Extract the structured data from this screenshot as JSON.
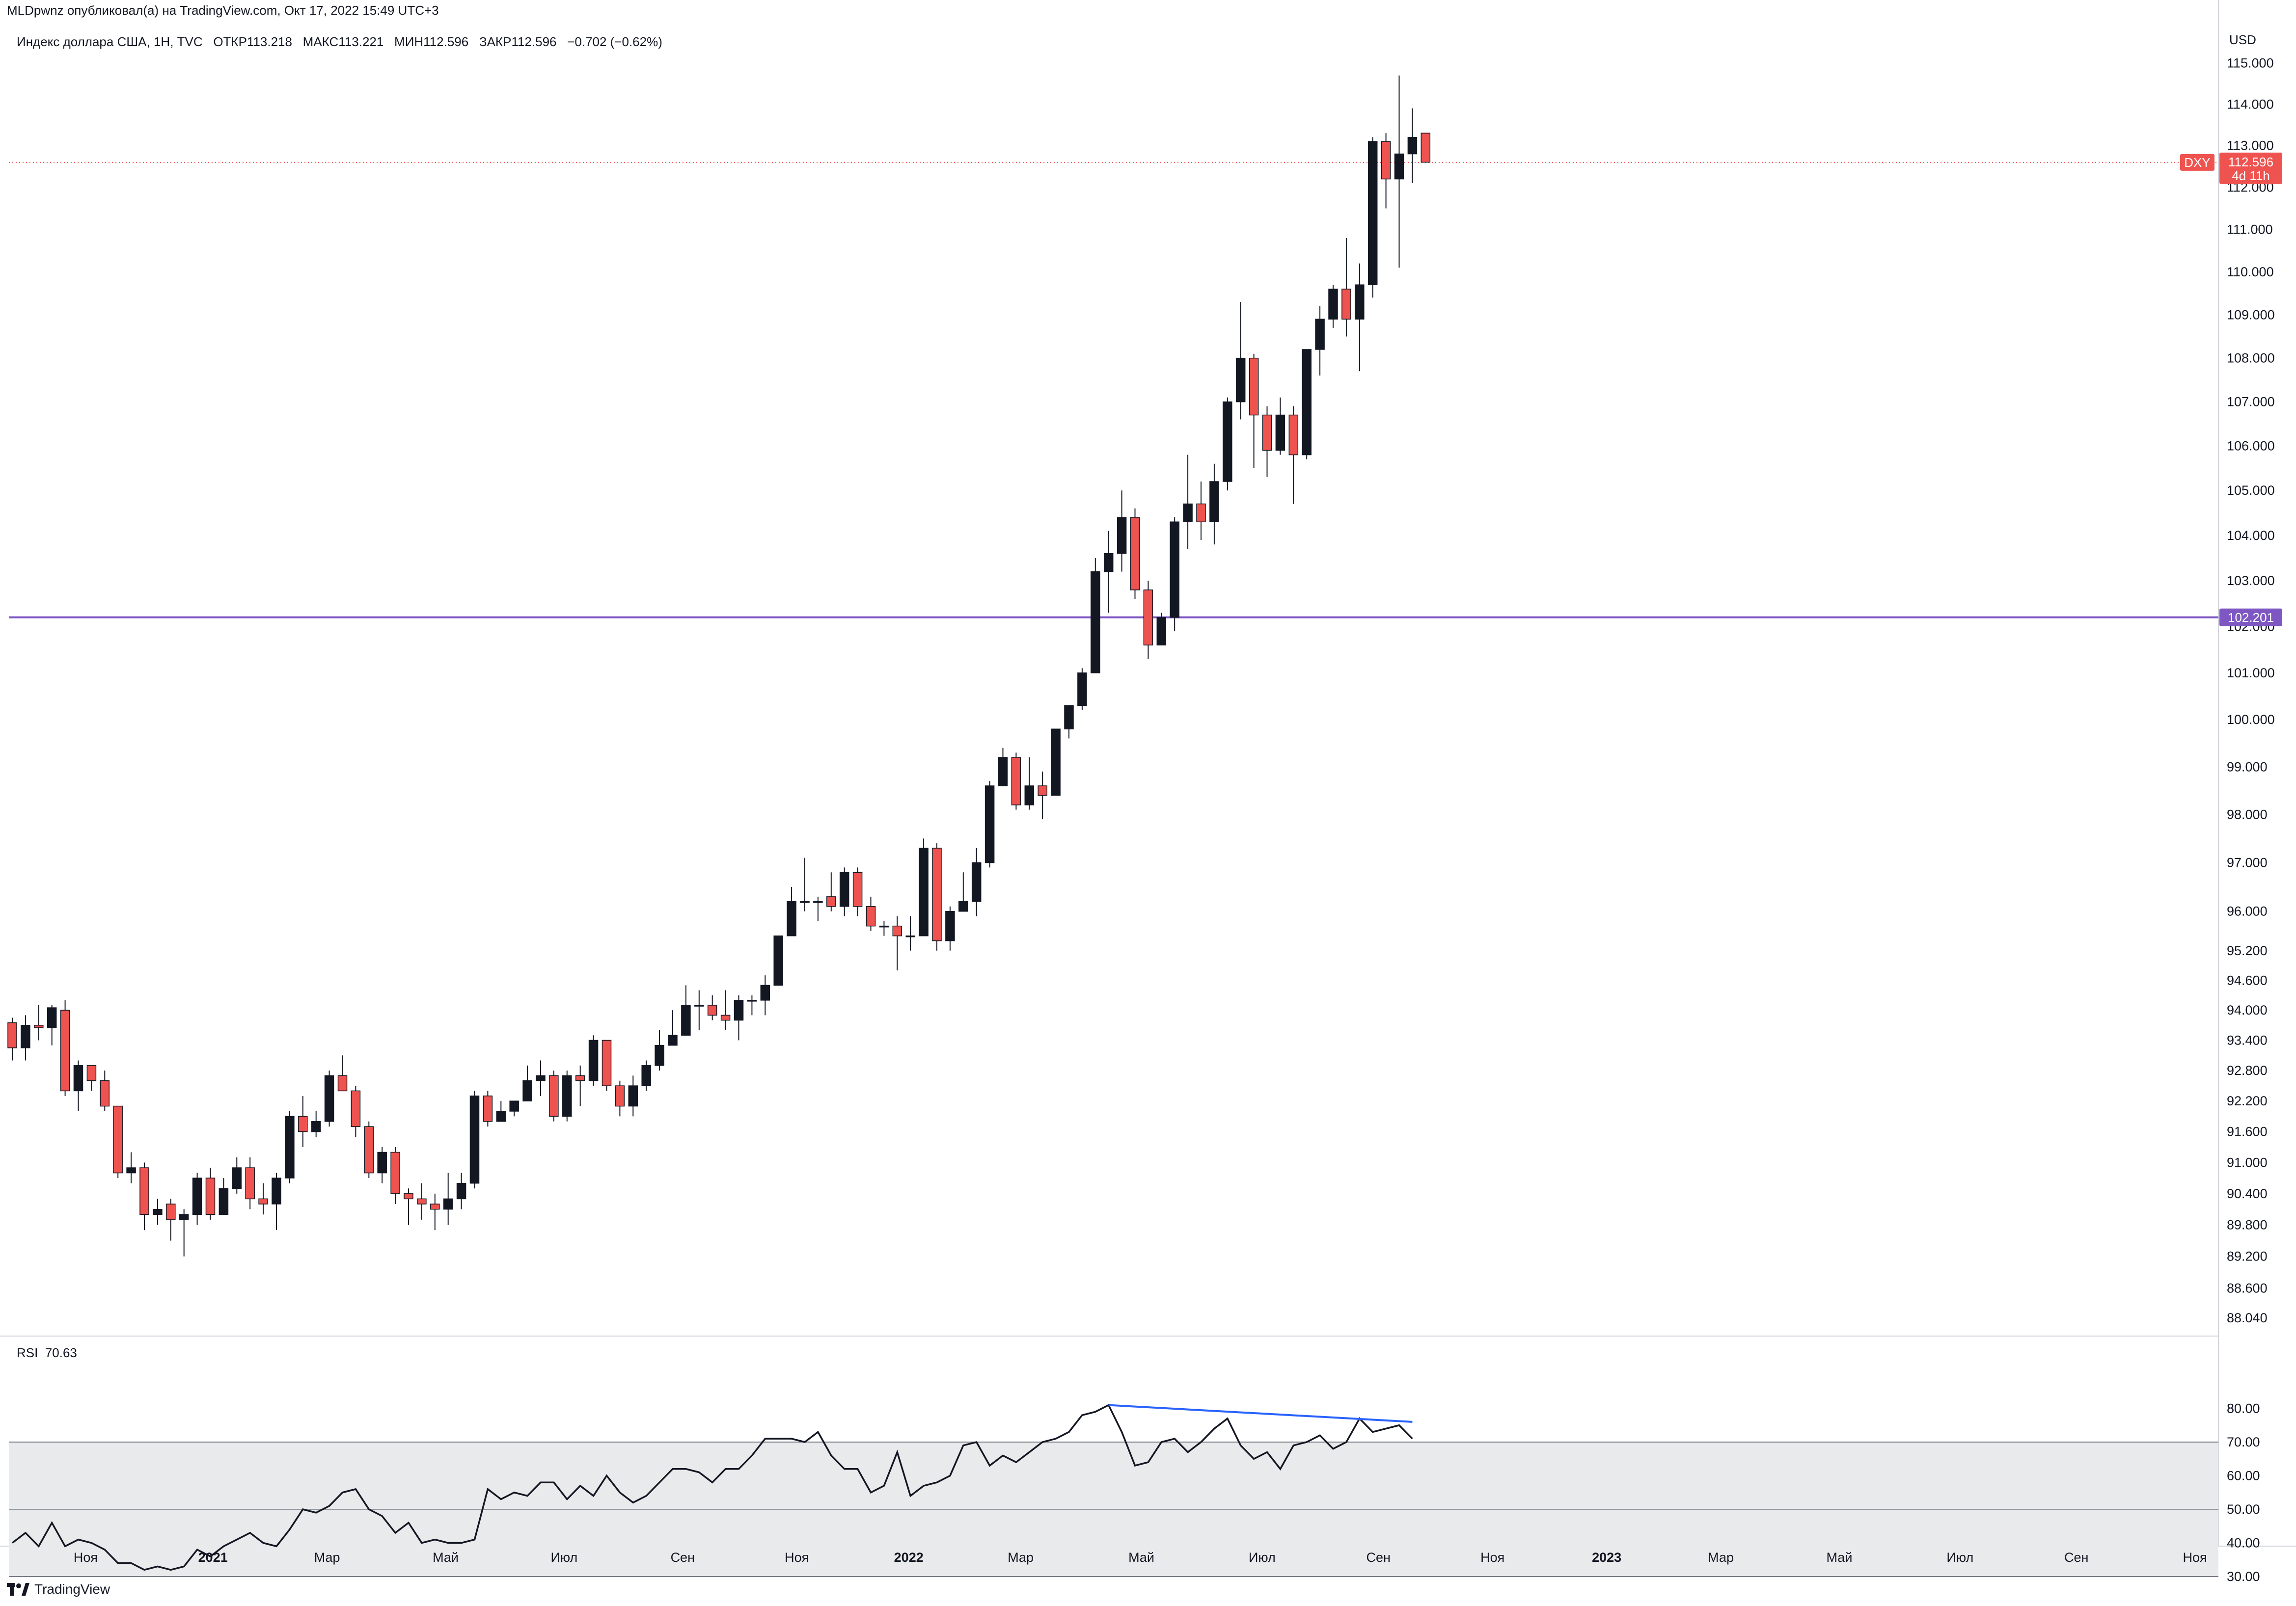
{
  "header": {
    "publisher": "MLDpwnz опубликовал(а) на TradingView.com, Окт 17, 2022 15:49 UTC+3",
    "symbol_line": "Индекс доллара США, 1Н, TVC",
    "open_label": "ОТКР",
    "open_value": "113.218",
    "high_label": "МАКС",
    "high_value": "113.221",
    "low_label": "МИН",
    "low_value": "112.596",
    "close_label": "ЗАКР",
    "close_value": "112.596",
    "change": "−0.702 (−0.62%)"
  },
  "currency": "USD",
  "price_tag": {
    "symbol": "DXY",
    "value": "112.596",
    "countdown": "4d 11h",
    "price": 112.596
  },
  "level_tag": {
    "value": "102.201",
    "price": 102.201
  },
  "rsi": {
    "label": "RSI",
    "value": "70.63"
  },
  "footer": {
    "brand": "TradingView"
  },
  "colors": {
    "up": "#131722",
    "down": "#ef5350",
    "level": "#7e57c2",
    "rsi_line": "#131722",
    "divergence": "#2962ff",
    "band": "#e9eaec"
  },
  "chart_data": [
    {
      "type": "candlestick",
      "title": "Индекс доллара США, 1Н, TVC",
      "ylabel": "USD",
      "scale": "log",
      "y_ticks": [
        88.04,
        88.6,
        89.2,
        89.8,
        90.4,
        91.0,
        91.6,
        92.2,
        92.8,
        93.4,
        94.0,
        94.6,
        95.2,
        96.0,
        97.0,
        98.0,
        99.0,
        100.0,
        101.0,
        102.0,
        103.0,
        104.0,
        105.0,
        106.0,
        107.0,
        108.0,
        109.0,
        110.0,
        111.0,
        112.0,
        113.0,
        114.0,
        115.0
      ],
      "y_tick_labels": [
        "88.040",
        "88.600",
        "89.200",
        "89.800",
        "90.400",
        "91.000",
        "91.600",
        "92.200",
        "92.800",
        "93.400",
        "94.000",
        "94.600",
        "95.200",
        "96.000",
        "97.000",
        "98.000",
        "99.000",
        "100.000",
        "101.000",
        "102.000",
        "103.000",
        "104.000",
        "105.000",
        "106.000",
        "107.000",
        "108.000",
        "109.000",
        "110.000",
        "111.000",
        "112.000",
        "113.000",
        "114.000",
        "115.000"
      ],
      "x_labels": [
        {
          "label": "Ноя",
          "pos": 0.035,
          "bold": false
        },
        {
          "label": "2021",
          "pos": 0.093,
          "bold": true
        },
        {
          "label": "Мар",
          "pos": 0.145,
          "bold": false
        },
        {
          "label": "Май",
          "pos": 0.199,
          "bold": false
        },
        {
          "label": "Июл",
          "pos": 0.253,
          "bold": false
        },
        {
          "label": "Сен",
          "pos": 0.307,
          "bold": false
        },
        {
          "label": "Ноя",
          "pos": 0.359,
          "bold": false
        },
        {
          "label": "2022",
          "pos": 0.41,
          "bold": true
        },
        {
          "label": "Мар",
          "pos": 0.461,
          "bold": false
        },
        {
          "label": "Май",
          "pos": 0.516,
          "bold": false
        },
        {
          "label": "Июл",
          "pos": 0.571,
          "bold": false
        },
        {
          "label": "Сен",
          "pos": 0.624,
          "bold": false
        },
        {
          "label": "Ноя",
          "pos": 0.676,
          "bold": false
        },
        {
          "label": "2023",
          "pos": 0.728,
          "bold": true
        },
        {
          "label": "Мар",
          "pos": 0.78,
          "bold": false
        },
        {
          "label": "Май",
          "pos": 0.834,
          "bold": false
        },
        {
          "label": "Июл",
          "pos": 0.889,
          "bold": false
        },
        {
          "label": "Сен",
          "pos": 0.942,
          "bold": false
        },
        {
          "label": "Ноя",
          "pos": 0.996,
          "bold": false
        }
      ],
      "candles": [
        [
          93.75,
          93.25,
          93.85,
          93.0
        ],
        [
          93.25,
          93.7,
          93.9,
          93.0
        ],
        [
          93.7,
          93.65,
          94.1,
          93.4
        ],
        [
          93.65,
          94.05,
          94.1,
          93.3
        ],
        [
          94.0,
          92.4,
          94.2,
          92.3
        ],
        [
          92.4,
          92.9,
          93.0,
          92.0
        ],
        [
          92.9,
          92.6,
          92.9,
          92.4
        ],
        [
          92.6,
          92.1,
          92.8,
          92.0
        ],
        [
          92.1,
          90.8,
          92.1,
          90.7
        ],
        [
          90.8,
          90.9,
          91.2,
          90.6
        ],
        [
          90.9,
          90.0,
          91.0,
          89.7
        ],
        [
          90.0,
          90.1,
          90.3,
          89.8
        ],
        [
          90.2,
          89.9,
          90.3,
          89.5
        ],
        [
          89.9,
          90.0,
          90.1,
          89.2
        ],
        [
          90.0,
          90.7,
          90.8,
          89.8
        ],
        [
          90.7,
          90.0,
          90.9,
          89.9
        ],
        [
          90.0,
          90.5,
          90.7,
          90.0
        ],
        [
          90.5,
          90.9,
          91.1,
          90.4
        ],
        [
          90.9,
          90.3,
          91.1,
          90.1
        ],
        [
          90.3,
          90.2,
          90.6,
          90.0
        ],
        [
          90.2,
          90.7,
          90.8,
          89.7
        ],
        [
          90.7,
          91.9,
          92.0,
          90.6
        ],
        [
          91.9,
          91.6,
          92.3,
          91.3
        ],
        [
          91.6,
          91.8,
          92.0,
          91.5
        ],
        [
          91.8,
          92.7,
          92.8,
          91.7
        ],
        [
          92.7,
          92.4,
          93.1,
          92.4
        ],
        [
          92.4,
          91.7,
          92.5,
          91.5
        ],
        [
          91.7,
          90.8,
          91.8,
          90.7
        ],
        [
          90.8,
          91.2,
          91.3,
          90.6
        ],
        [
          91.2,
          90.4,
          91.3,
          90.2
        ],
        [
          90.4,
          90.3,
          90.5,
          89.8
        ],
        [
          90.3,
          90.2,
          90.6,
          89.9
        ],
        [
          90.2,
          90.1,
          90.4,
          89.7
        ],
        [
          90.1,
          90.3,
          90.8,
          89.8
        ],
        [
          90.3,
          90.6,
          90.8,
          90.1
        ],
        [
          90.6,
          92.3,
          92.4,
          90.5
        ],
        [
          92.3,
          91.8,
          92.4,
          91.7
        ],
        [
          91.8,
          92.0,
          92.2,
          91.8
        ],
        [
          92.0,
          92.2,
          92.2,
          91.9
        ],
        [
          92.2,
          92.6,
          92.9,
          92.2
        ],
        [
          92.6,
          92.7,
          93.0,
          92.3
        ],
        [
          92.7,
          91.9,
          92.8,
          91.8
        ],
        [
          91.9,
          92.7,
          92.8,
          91.8
        ],
        [
          92.7,
          92.6,
          92.9,
          92.1
        ],
        [
          92.6,
          93.4,
          93.5,
          92.5
        ],
        [
          93.4,
          92.5,
          93.4,
          92.4
        ],
        [
          92.5,
          92.1,
          92.6,
          91.9
        ],
        [
          92.1,
          92.5,
          92.7,
          91.9
        ],
        [
          92.5,
          92.9,
          93.0,
          92.4
        ],
        [
          92.9,
          93.3,
          93.6,
          92.8
        ],
        [
          93.3,
          93.5,
          94.0,
          93.3
        ],
        [
          93.5,
          94.1,
          94.5,
          93.5
        ],
        [
          94.1,
          94.1,
          94.4,
          93.6
        ],
        [
          94.1,
          93.9,
          94.3,
          93.8
        ],
        [
          93.9,
          93.8,
          94.4,
          93.6
        ],
        [
          93.8,
          94.2,
          94.3,
          93.4
        ],
        [
          94.2,
          94.2,
          94.3,
          93.9
        ],
        [
          94.2,
          94.5,
          94.7,
          93.9
        ],
        [
          94.5,
          95.5,
          95.5,
          94.5
        ],
        [
          95.5,
          96.2,
          96.5,
          95.5
        ],
        [
          96.2,
          96.2,
          97.1,
          96.0
        ],
        [
          96.2,
          96.2,
          96.3,
          95.8
        ],
        [
          96.3,
          96.1,
          96.8,
          96.0
        ],
        [
          96.1,
          96.8,
          96.9,
          95.9
        ],
        [
          96.8,
          96.1,
          96.9,
          95.9
        ],
        [
          96.1,
          95.7,
          96.3,
          95.6
        ],
        [
          95.7,
          95.7,
          95.8,
          95.5
        ],
        [
          95.7,
          95.5,
          95.9,
          94.8
        ],
        [
          95.5,
          95.5,
          95.9,
          95.2
        ],
        [
          95.5,
          97.3,
          97.5,
          95.5
        ],
        [
          97.3,
          95.4,
          97.4,
          95.2
        ],
        [
          95.4,
          96.0,
          96.1,
          95.2
        ],
        [
          96.0,
          96.2,
          96.8,
          96.1
        ],
        [
          96.2,
          97.0,
          97.3,
          95.9
        ],
        [
          97.0,
          98.6,
          98.7,
          96.9
        ],
        [
          98.6,
          99.2,
          99.4,
          98.6
        ],
        [
          99.2,
          98.2,
          99.3,
          98.1
        ],
        [
          98.2,
          98.6,
          99.2,
          98.1
        ],
        [
          98.6,
          98.4,
          98.9,
          97.9
        ],
        [
          98.4,
          99.8,
          99.8,
          98.4
        ],
        [
          99.8,
          100.3,
          100.3,
          99.6
        ],
        [
          100.3,
          101.0,
          101.1,
          100.2
        ],
        [
          101.0,
          103.2,
          103.5,
          101.0
        ],
        [
          103.2,
          103.6,
          104.1,
          102.3
        ],
        [
          103.6,
          104.4,
          105.0,
          103.2
        ],
        [
          104.4,
          102.8,
          104.6,
          102.6
        ],
        [
          102.8,
          101.6,
          103.0,
          101.3
        ],
        [
          101.6,
          102.2,
          102.3,
          101.6
        ],
        [
          102.2,
          104.3,
          104.4,
          101.9
        ],
        [
          104.3,
          104.7,
          105.8,
          103.7
        ],
        [
          104.7,
          104.3,
          105.2,
          103.9
        ],
        [
          104.3,
          105.2,
          105.6,
          103.8
        ],
        [
          105.2,
          107.0,
          107.1,
          105.0
        ],
        [
          107.0,
          108.0,
          109.3,
          106.6
        ],
        [
          108.0,
          106.7,
          108.1,
          105.5
        ],
        [
          106.7,
          105.9,
          106.9,
          105.3
        ],
        [
          105.9,
          106.7,
          107.1,
          105.8
        ],
        [
          106.7,
          105.8,
          106.9,
          104.7
        ],
        [
          105.8,
          108.2,
          108.2,
          105.7
        ],
        [
          108.2,
          108.9,
          109.2,
          107.6
        ],
        [
          108.9,
          109.6,
          109.7,
          108.7
        ],
        [
          109.6,
          108.9,
          110.8,
          108.5
        ],
        [
          108.9,
          109.7,
          110.2,
          107.7
        ],
        [
          109.7,
          113.1,
          113.2,
          109.4
        ],
        [
          113.1,
          112.2,
          113.3,
          111.5
        ],
        [
          112.2,
          112.8,
          114.7,
          110.1
        ],
        [
          112.8,
          113.2,
          113.9,
          112.1
        ],
        [
          113.3,
          112.6,
          113.3,
          112.6
        ]
      ],
      "price_line": 112.596,
      "horizontal_level": 102.201
    },
    {
      "type": "line",
      "title": "RSI",
      "y_ticks": [
        30,
        40,
        50,
        60,
        70,
        80
      ],
      "y_tick_labels": [
        "30.00",
        "40.00",
        "50.00",
        "60.00",
        "70.00",
        "80.00"
      ],
      "band": [
        30,
        70
      ],
      "mid": 50,
      "values": [
        40,
        43,
        39,
        46,
        39,
        41,
        40,
        38,
        34,
        34,
        32,
        33,
        32,
        33,
        38,
        36,
        39,
        41,
        43,
        40,
        39,
        44,
        50,
        49,
        51,
        55,
        56,
        50,
        48,
        43,
        46,
        40,
        41,
        40,
        40,
        41,
        56,
        53,
        55,
        54,
        58,
        58,
        53,
        57,
        54,
        60,
        55,
        52,
        54,
        58,
        62,
        62,
        61,
        58,
        62,
        62,
        66,
        71,
        71,
        71,
        70,
        73,
        66,
        62,
        62,
        55,
        57,
        67,
        54,
        57,
        58,
        60,
        69,
        70,
        63,
        66,
        64,
        67,
        70,
        71,
        73,
        78,
        79,
        81,
        73,
        63,
        64,
        70,
        71,
        67,
        70,
        74,
        77,
        69,
        65,
        67,
        62,
        69,
        70,
        72,
        68,
        70,
        77,
        73,
        74,
        75,
        71
      ],
      "divergence_line": {
        "from_index": 83,
        "from_value": 81,
        "to_index": 106,
        "to_value": 76
      }
    }
  ]
}
